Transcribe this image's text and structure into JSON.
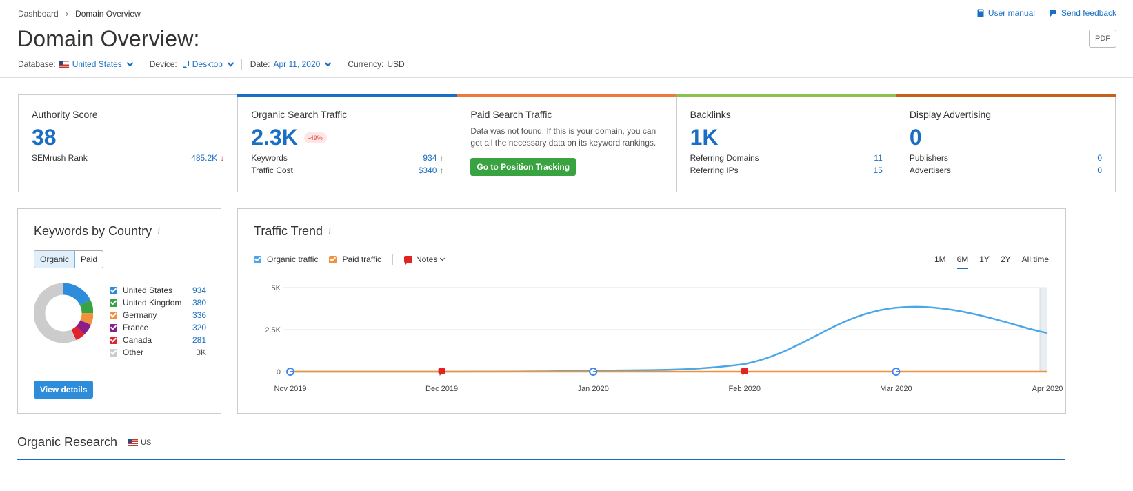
{
  "breadcrumb": {
    "root": "Dashboard",
    "current": "Domain Overview"
  },
  "top_links": {
    "user_manual": "User manual",
    "send_feedback": "Send feedback"
  },
  "page_title": "Domain Overview:",
  "pdf_label": "PDF",
  "filters": {
    "database_label": "Database:",
    "database_value": "United States",
    "device_label": "Device:",
    "device_value": "Desktop",
    "date_label": "Date:",
    "date_value": "Apr 11, 2020",
    "currency_label": "Currency:",
    "currency_value": "USD"
  },
  "metrics": {
    "authority": {
      "title": "Authority Score",
      "value": "38",
      "row_label": "SEMrush Rank",
      "row_value": "485.2K",
      "row_arrow": "↓"
    },
    "organic": {
      "title": "Organic Search Traffic",
      "value": "2.3K",
      "badge": "-49%",
      "rows": [
        {
          "label": "Keywords",
          "value": "934",
          "arrow": "↑"
        },
        {
          "label": "Traffic Cost",
          "value": "$340",
          "arrow": "↑"
        }
      ]
    },
    "paid": {
      "title": "Paid Search Traffic",
      "desc": "Data was not found. If this is your domain, you can get all the necessary data on its keyword rankings.",
      "button": "Go to Position Tracking"
    },
    "backlinks": {
      "title": "Backlinks",
      "value": "1K",
      "rows": [
        {
          "label": "Referring Domains",
          "value": "11"
        },
        {
          "label": "Referring IPs",
          "value": "15"
        }
      ]
    },
    "display": {
      "title": "Display Advertising",
      "value": "0",
      "rows": [
        {
          "label": "Publishers",
          "value": "0"
        },
        {
          "label": "Advertisers",
          "value": "0"
        }
      ]
    }
  },
  "colors": {
    "accent": "#1a6fc4",
    "organic_bar": "#1a6fc4",
    "paid_bar": "#ee7a3a",
    "backlinks_bar": "#8cc152",
    "display_bar": "#c8601a"
  },
  "keywords_by_country": {
    "title": "Keywords by Country",
    "info": "i",
    "tabs": [
      "Organic",
      "Paid"
    ],
    "countries": [
      {
        "name": "United States",
        "value": "934",
        "color": "#2d8ddb"
      },
      {
        "name": "United Kingdom",
        "value": "380",
        "color": "#3aa341"
      },
      {
        "name": "Germany",
        "value": "336",
        "color": "#f0923a"
      },
      {
        "name": "France",
        "value": "320",
        "color": "#8a1e8a"
      },
      {
        "name": "Canada",
        "value": "281",
        "color": "#e0242b"
      },
      {
        "name": "Other",
        "value": "3K",
        "color": "#cccccc"
      }
    ],
    "button": "View details"
  },
  "traffic_trend": {
    "title": "Traffic Trend",
    "info": "i",
    "legend": {
      "organic": "Organic traffic",
      "paid": "Paid traffic",
      "notes": "Notes"
    },
    "ranges": [
      "1M",
      "6M",
      "1Y",
      "2Y",
      "All time"
    ],
    "active_range": "6M"
  },
  "chart_data": {
    "type": "line",
    "x": [
      "Nov 2019",
      "Dec 2019",
      "Jan 2020",
      "Feb 2020",
      "Mar 2020",
      "Apr 2020"
    ],
    "yticks": [
      "0",
      "2.5K",
      "5K"
    ],
    "ylim": [
      0,
      5000
    ],
    "series": [
      {
        "name": "Organic traffic",
        "color": "#4aa8e8",
        "values": [
          0,
          0,
          50,
          450,
          3800,
          2300
        ]
      },
      {
        "name": "Paid traffic",
        "color": "#f0923a",
        "values": [
          0,
          0,
          0,
          0,
          0,
          0
        ]
      }
    ],
    "markers": [
      {
        "x": "Nov 2019",
        "kind": "google"
      },
      {
        "x": "Dec 2019",
        "kind": "note"
      },
      {
        "x": "Jan 2020",
        "kind": "google"
      },
      {
        "x": "Feb 2020",
        "kind": "note"
      },
      {
        "x": "Mar 2020",
        "kind": "google"
      }
    ],
    "grid": true
  },
  "organic_research": {
    "title": "Organic Research",
    "db": "US"
  }
}
